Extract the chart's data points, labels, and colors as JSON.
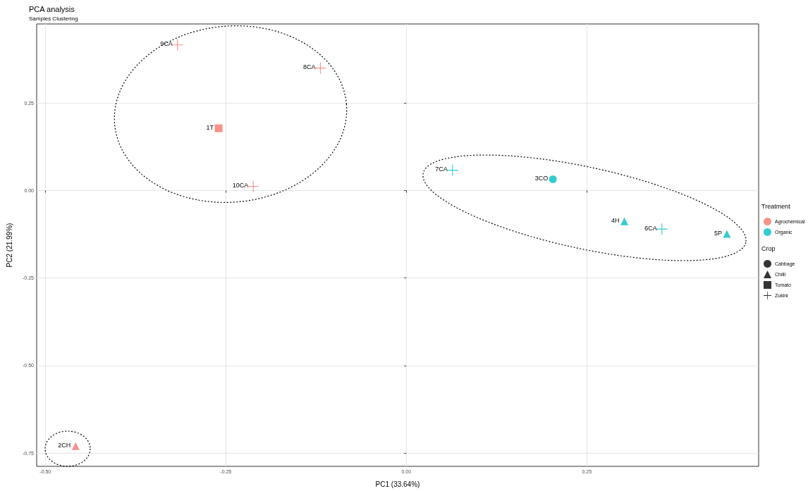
{
  "chart_data": {
    "type": "scatter",
    "title": "PCA analysis",
    "subtitle": "Samples Clustering",
    "xlabel": "PC1 (33.64%)",
    "ylabel": "PC2 (21.99%)",
    "legend_title": [
      "Treatment",
      "Crop"
    ],
    "legend": "right",
    "grid": true,
    "xlim": [
      -0.512,
      0.488
    ],
    "xticks": [
      {
        "value": -0.5,
        "label": "-0.50"
      },
      {
        "value": -0.25,
        "label": "-0.25"
      },
      {
        "value": 0,
        "label": "0.00"
      },
      {
        "value": 0.25,
        "label": "0.25"
      }
    ],
    "ylim": [
      -0.788,
      0.476
    ],
    "yticks": [
      {
        "value": -0.75,
        "label": "-0.75"
      },
      {
        "value": -0.5,
        "label": "-0.50"
      },
      {
        "value": -0.25,
        "label": "-0.25"
      },
      {
        "value": 0,
        "label": "0.00"
      },
      {
        "value": 0.25,
        "label": "0.25"
      }
    ],
    "annotations": [
      {
        "text": "9CA",
        "x": -0.317,
        "y": 0.416
      },
      {
        "text": "8CA",
        "x": -0.119,
        "y": 0.35
      },
      {
        "text": "1T",
        "x": -0.26,
        "y": 0.178
      },
      {
        "text": "10CA",
        "x": -0.212,
        "y": 0.012
      },
      {
        "text": "2CH",
        "x": -0.458,
        "y": -0.73
      },
      {
        "text": "7CA",
        "x": 0.064,
        "y": 0.058
      },
      {
        "text": "3CO",
        "x": 0.203,
        "y": 0.032
      },
      {
        "text": "4H",
        "x": 0.302,
        "y": -0.088
      },
      {
        "text": "6CA",
        "x": 0.354,
        "y": -0.11
      },
      {
        "text": "5P",
        "x": 0.444,
        "y": -0.124
      }
    ],
    "series": [
      {
        "name": "Agrochemical",
        "color": "#f8766d",
        "marker": "circle"
      },
      {
        "name": "Organic",
        "color": "#00bfc4",
        "marker": "circle"
      },
      {
        "name": "Cabbage",
        "color": "#000000",
        "marker": "circle"
      },
      {
        "name": "Chilli",
        "color": "#000000",
        "marker": "triangle"
      },
      {
        "name": "Tomato",
        "color": "#000000",
        "marker": "square"
      },
      {
        "name": "Zukini",
        "color": "#000000",
        "marker": "cross"
      },
      {
        "color": "#f8766d",
        "marker": "cross",
        "x": [
          -0.317,
          -0.119,
          -0.212
        ],
        "values": [
          0.416,
          0.35,
          0.012
        ]
      },
      {
        "color": "#f8766d",
        "marker": "square",
        "x": [
          -0.26
        ],
        "values": [
          0.178
        ]
      },
      {
        "color": "#f8766d",
        "marker": "triangle",
        "x": [
          -0.458
        ],
        "values": [
          -0.73
        ]
      },
      {
        "color": "#00bfc4",
        "marker": "cross",
        "x": [
          0.064,
          0.354
        ],
        "values": [
          0.058,
          -0.11
        ]
      },
      {
        "color": "#00bfc4",
        "marker": "circle",
        "x": [
          0.203
        ],
        "values": [
          0.032
        ]
      },
      {
        "color": "#00bfc4",
        "marker": "triangle",
        "x": [
          0.302,
          0.444
        ],
        "values": [
          -0.088,
          -0.124
        ]
      }
    ]
  }
}
